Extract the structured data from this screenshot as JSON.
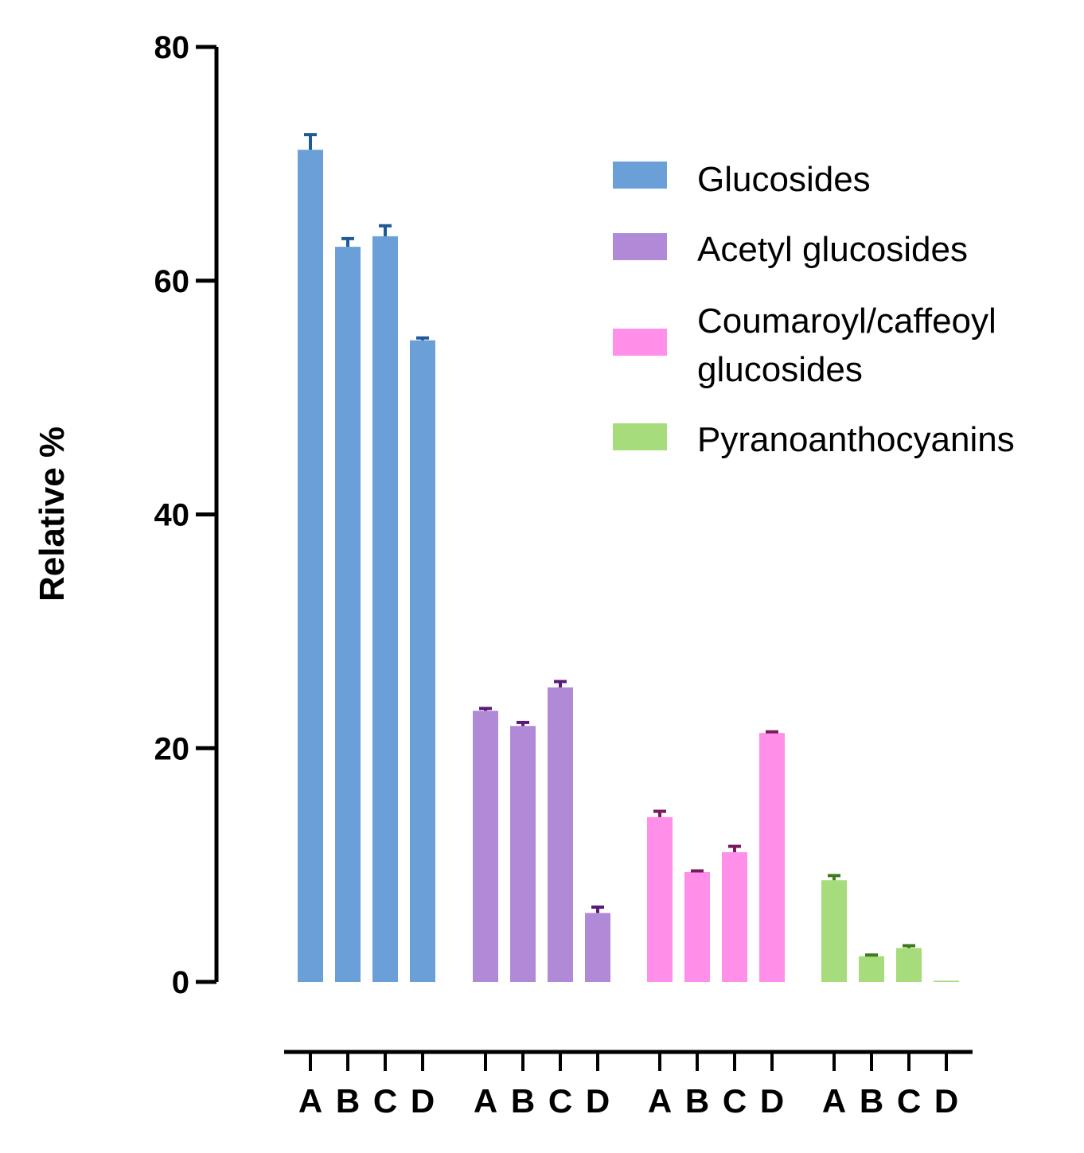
{
  "chart_data": {
    "type": "bar",
    "ylabel": "Relative %",
    "xlabel": "",
    "ylim": [
      0,
      80
    ],
    "yticks": [
      0,
      20,
      40,
      60,
      80
    ],
    "grid": false,
    "legend_position": "top-right",
    "categories": [
      "A",
      "B",
      "C",
      "D"
    ],
    "series": [
      {
        "name": "Glucosides",
        "color": "#6a9fd8",
        "error_color": "#1f5a96",
        "values": [
          71.2,
          62.9,
          63.8,
          54.9
        ],
        "errors": [
          1.3,
          0.7,
          0.9,
          0.2
        ]
      },
      {
        "name": "Acetyl glucosides",
        "color": "#b08ad6",
        "error_color": "#5c1a78",
        "values": [
          23.2,
          21.9,
          25.2,
          5.9
        ],
        "errors": [
          0.2,
          0.3,
          0.5,
          0.5
        ]
      },
      {
        "name": "Coumaroyl/caffeoyl glucosides",
        "color": "#ff8fe8",
        "error_color": "#7a1a5e",
        "values": [
          14.1,
          9.4,
          11.1,
          21.3
        ],
        "errors": [
          0.5,
          0.1,
          0.5,
          0.1
        ]
      },
      {
        "name": "Pyranoanthocyanins",
        "color": "#a6dc7c",
        "error_color": "#3f7a1f",
        "values": [
          8.7,
          2.2,
          2.9,
          0.1
        ],
        "errors": [
          0.4,
          0.1,
          0.2,
          0.0
        ]
      }
    ]
  }
}
